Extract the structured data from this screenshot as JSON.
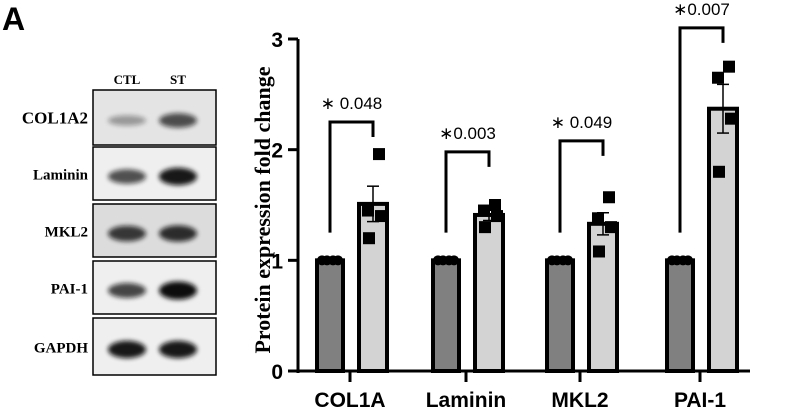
{
  "panel_label": "A",
  "blot": {
    "lanes": [
      "CTL",
      "ST"
    ],
    "rows": [
      {
        "label": "COL1A2",
        "intensity": [
          0.35,
          0.7
        ]
      },
      {
        "label": "Laminin",
        "intensity": [
          0.7,
          0.95
        ]
      },
      {
        "label": "MKL2",
        "intensity": [
          0.8,
          0.85
        ]
      },
      {
        "label": "PAI-1",
        "intensity": [
          0.75,
          1.0
        ]
      },
      {
        "label": "GAPDH",
        "intensity": [
          0.95,
          0.95
        ]
      }
    ]
  },
  "chart_data": {
    "type": "bar",
    "title": "",
    "xlabel": "",
    "ylabel": "Protein expression fold change",
    "ylim": [
      0,
      3
    ],
    "yticks": [
      "0",
      "1",
      "2",
      "3"
    ],
    "categories": [
      "COL1A",
      "Laminin",
      "MKL2",
      "PAI-1"
    ],
    "series": [
      {
        "values": [
          1,
          1,
          1,
          1
        ],
        "color": "#808080",
        "points": [
          [
            1,
            1,
            1,
            1
          ],
          [
            1,
            1,
            1,
            1
          ],
          [
            1,
            1,
            1,
            1
          ],
          [
            1,
            1,
            1,
            1
          ]
        ]
      },
      {
        "values": [
          1.51,
          1.41,
          1.33,
          2.37
        ],
        "error": [
          0.16,
          0.05,
          0.1,
          0.22
        ],
        "color": "#d3d3d3",
        "points": [
          [
            1.96,
            1.45,
            1.4,
            1.2
          ],
          [
            1.5,
            1.45,
            1.4,
            1.3
          ],
          [
            1.57,
            1.38,
            1.3,
            1.08
          ],
          [
            2.75,
            2.65,
            2.28,
            1.8
          ]
        ]
      }
    ],
    "annotations": [
      {
        "text": "∗ 0.048",
        "bracket_y": 2.25
      },
      {
        "text": "∗0.003",
        "bracket_y": 1.98
      },
      {
        "text": "∗ 0.049",
        "bracket_y": 2.08
      },
      {
        "text": "∗0.007",
        "bracket_y": 3.1
      }
    ],
    "grid": false,
    "legend": "none"
  }
}
